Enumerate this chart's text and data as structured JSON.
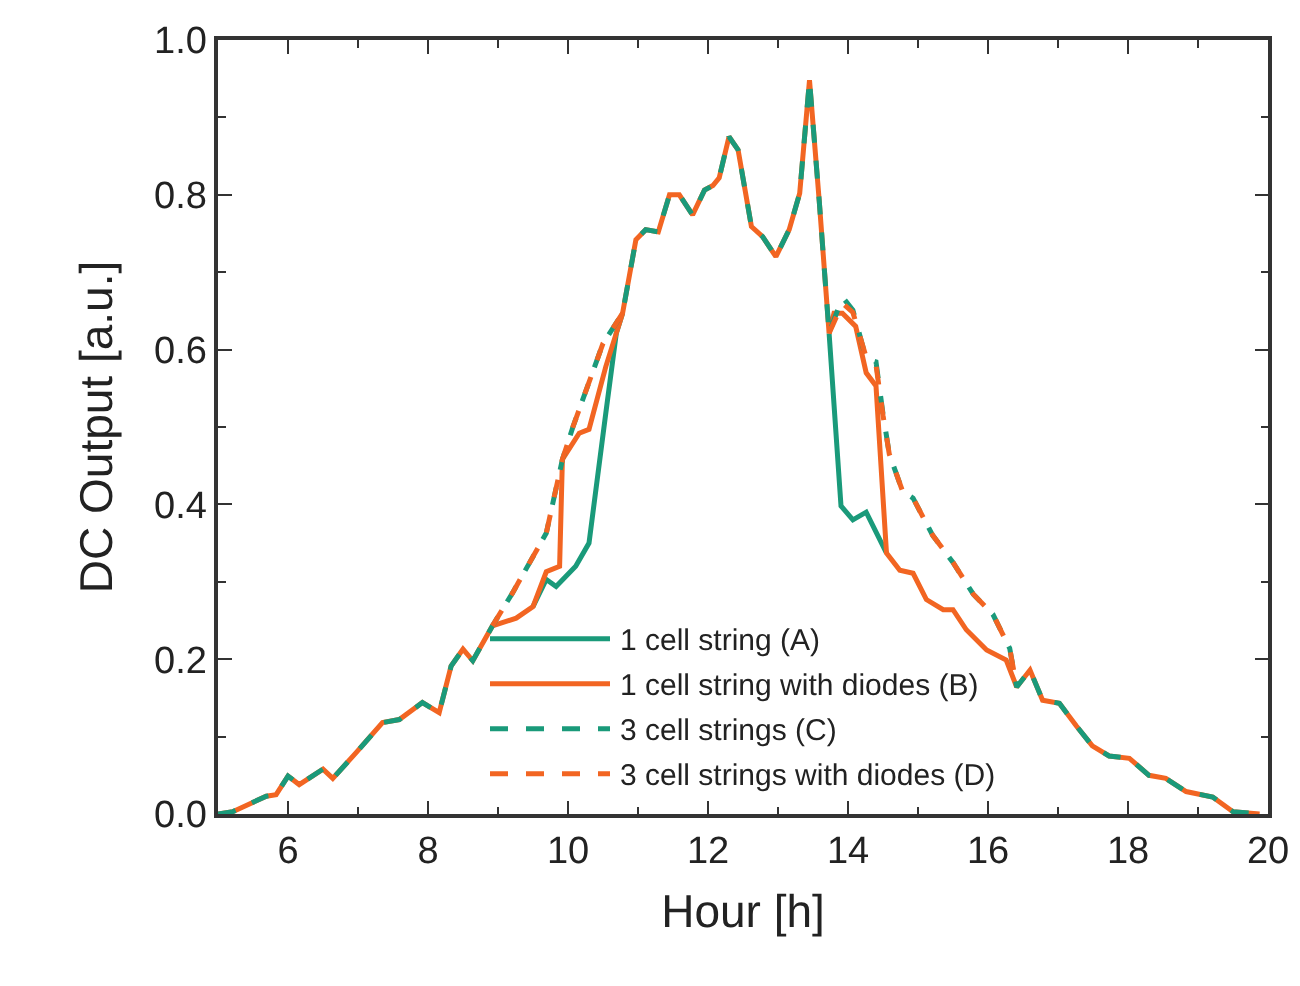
{
  "chart_data": {
    "type": "line",
    "xlabel": "Hour [h]",
    "ylabel": "DC Output [a.u.]",
    "xlim": [
      5,
      20
    ],
    "xticks": [
      6,
      8,
      10,
      12,
      14,
      16,
      18,
      20
    ],
    "ylim": [
      0,
      1
    ],
    "yticks": [
      {
        "value": 0,
        "label": "0.0"
      },
      0.2,
      0.4,
      0.6,
      0.8,
      {
        "value": 1,
        "label": "1.0"
      }
    ],
    "grid": false,
    "legend": "bottom",
    "marker": "none",
    "series": [
      {
        "name": "1 cell string (A)",
        "color": "#1a9a7a",
        "line_style": "solid",
        "x": [
          9.5,
          9.69,
          9.83,
          10.11,
          10.3,
          10.54,
          10.69,
          10.78,
          null,
          13.73,
          13.9,
          14.07,
          14.26,
          14.55
        ],
        "values": [
          0.268,
          0.303,
          0.294,
          0.32,
          0.35,
          0.518,
          0.621,
          0.647,
          null,
          0.621,
          0.398,
          0.38,
          0.39,
          0.337
        ]
      },
      {
        "name": "1 cell string with diodes (B)",
        "color": "#f26522",
        "line_style": "solid",
        "x": [
          5.0,
          5.21,
          5.69,
          5.83,
          6.0,
          6.16,
          6.5,
          6.64,
          6.97,
          7.35,
          7.59,
          7.92,
          8.16,
          8.33,
          8.5,
          8.64,
          8.92,
          9.26,
          9.5,
          9.69,
          9.88,
          9.92,
          10.16,
          10.3,
          10.54,
          10.78,
          10.97,
          11.11,
          11.29,
          11.45,
          11.59,
          11.78,
          11.95,
          12.07,
          12.16,
          12.3,
          12.43,
          12.62,
          12.78,
          12.97,
          13.16,
          13.31,
          13.45,
          13.59,
          13.73,
          13.8,
          13.92,
          14.11,
          14.26,
          14.4,
          14.55,
          14.74,
          14.93,
          15.12,
          15.36,
          15.5,
          15.69,
          15.98,
          16.26,
          16.41,
          16.6,
          16.78,
          17.02,
          17.26,
          17.49,
          17.73,
          18.02,
          18.3,
          18.54,
          18.83,
          19.21,
          19.5,
          19.88
        ],
        "values": [
          0,
          0.003,
          0.023,
          0.025,
          0.049,
          0.038,
          0.058,
          0.046,
          0.079,
          0.118,
          0.122,
          0.144,
          0.131,
          0.191,
          0.213,
          0.198,
          0.243,
          0.253,
          0.268,
          0.313,
          0.32,
          0.458,
          0.492,
          0.497,
          0.578,
          0.647,
          0.742,
          0.755,
          0.752,
          0.8,
          0.8,
          0.774,
          0.806,
          0.812,
          0.822,
          0.875,
          0.858,
          0.759,
          0.746,
          0.72,
          0.755,
          0.802,
          0.948,
          0.791,
          0.621,
          0.647,
          0.647,
          0.63,
          0.57,
          0.553,
          0.337,
          0.315,
          0.311,
          0.277,
          0.264,
          0.264,
          0.238,
          0.212,
          0.199,
          0.164,
          0.186,
          0.147,
          0.143,
          0.114,
          0.088,
          0.075,
          0.072,
          0.05,
          0.046,
          0.029,
          0.022,
          0.003,
          0
        ]
      },
      {
        "name": "3 cell strings (C)",
        "color": "#1a9a7a",
        "line_style": "dashed",
        "x": [
          5.0,
          5.21,
          5.69,
          5.83,
          6.0,
          6.16,
          6.5,
          6.64,
          6.97,
          7.35,
          7.59,
          7.92,
          8.16,
          8.33,
          8.5,
          8.64,
          8.92,
          9.21,
          9.69,
          9.92,
          10.07,
          10.5,
          10.78,
          10.97,
          11.11,
          11.29,
          11.45,
          11.59,
          11.78,
          11.95,
          12.07,
          12.16,
          12.3,
          12.43,
          12.62,
          12.78,
          12.97,
          13.16,
          13.31,
          13.45,
          13.59,
          13.73,
          13.92,
          14.07,
          14.26,
          14.4,
          14.5,
          14.59,
          14.78,
          14.93,
          15.21,
          15.5,
          15.79,
          16.07,
          16.31,
          16.41,
          16.6,
          16.78,
          17.02,
          17.26,
          17.49,
          17.73,
          18.02,
          18.3,
          18.54,
          18.83,
          19.21,
          19.5,
          19.88
        ],
        "values": [
          0,
          0.003,
          0.023,
          0.025,
          0.049,
          0.038,
          0.058,
          0.046,
          0.079,
          0.118,
          0.122,
          0.144,
          0.131,
          0.191,
          0.213,
          0.198,
          0.243,
          0.286,
          0.363,
          0.458,
          0.5,
          0.608,
          0.647,
          0.742,
          0.755,
          0.752,
          0.8,
          0.8,
          0.774,
          0.806,
          0.812,
          0.822,
          0.875,
          0.858,
          0.759,
          0.746,
          0.72,
          0.755,
          0.802,
          0.948,
          0.791,
          0.621,
          0.668,
          0.651,
          0.588,
          0.584,
          0.517,
          0.465,
          0.417,
          0.408,
          0.36,
          0.325,
          0.284,
          0.258,
          0.214,
          0.164,
          0.186,
          0.147,
          0.143,
          0.114,
          0.088,
          0.075,
          0.072,
          0.05,
          0.046,
          0.029,
          0.022,
          0.003,
          0
        ]
      },
      {
        "name": "3 cell strings with diodes (D)",
        "color": "#f26522",
        "line_style": "dashed",
        "x": [
          8.92,
          9.21,
          9.69,
          9.92,
          10.07,
          10.5,
          10.78,
          null,
          13.73,
          13.92,
          14.07,
          14.26,
          14.4,
          14.5,
          14.59,
          14.78,
          14.93,
          15.21,
          15.5,
          15.79,
          16.07,
          16.31,
          16.41
        ],
        "values": [
          0.243,
          0.286,
          0.363,
          0.458,
          0.5,
          0.608,
          0.647,
          null,
          0.621,
          0.66,
          0.648,
          0.59,
          0.58,
          0.515,
          0.465,
          0.417,
          0.408,
          0.36,
          0.325,
          0.284,
          0.258,
          0.214,
          0.164
        ]
      }
    ]
  }
}
